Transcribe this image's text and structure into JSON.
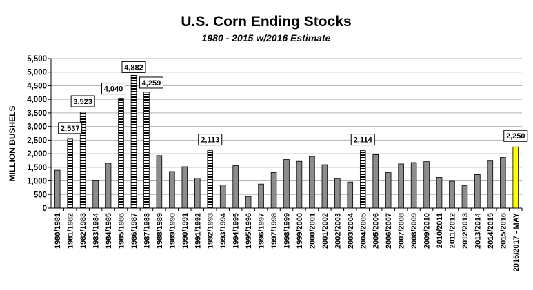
{
  "chart_data": {
    "type": "bar",
    "title": "U.S. Corn Ending Stocks",
    "subtitle": "1980 - 2015 w/2016 Estimate",
    "ylabel": "MILLION BUSHELS",
    "xlabel": "",
    "ylim": [
      0,
      5500
    ],
    "ytick_step": 500,
    "ytick_labels": [
      "0",
      "500",
      "1,000",
      "1,500",
      "2,000",
      "2,500",
      "3,000",
      "3,500",
      "4,000",
      "4,500",
      "5,000",
      "5,500"
    ],
    "grid": true,
    "categories": [
      "1980/1981",
      "1981/1982",
      "1982/1983",
      "1983/1984",
      "1984/1985",
      "1985/1986",
      "1986/1987",
      "1987/1988",
      "1988/1989",
      "1989/1990",
      "1990/1991",
      "1991/1992",
      "1992/1993",
      "1993/1994",
      "1994/1995",
      "1995/1996",
      "1996/1997",
      "1997/1998",
      "1998/1999",
      "1999/2000",
      "2000/2001",
      "2001/2002",
      "2002/2003",
      "2003/2004",
      "2004/2005",
      "2005/2006",
      "2006/2007",
      "2007/2008",
      "2008/2009",
      "2009/2010",
      "2010/2011",
      "2011/2012",
      "2012/2013",
      "2013/2014",
      "2014/2015",
      "2015/2016",
      "2016/2017 - MAY"
    ],
    "values": [
      1392,
      2537,
      3523,
      1006,
      1648,
      4040,
      4882,
      4259,
      1930,
      1344,
      1521,
      1100,
      2113,
      850,
      1558,
      426,
      883,
      1308,
      1787,
      1718,
      1899,
      1596,
      1087,
      958,
      2114,
      1967,
      1304,
      1624,
      1673,
      1708,
      1128,
      989,
      821,
      1232,
      1731,
      1862,
      2250
    ],
    "styles": [
      "solid",
      "striped",
      "striped",
      "solid",
      "solid",
      "striped",
      "striped",
      "striped",
      "solid",
      "solid",
      "solid",
      "solid",
      "striped",
      "solid",
      "solid",
      "solid",
      "solid",
      "solid",
      "solid",
      "solid",
      "solid",
      "solid",
      "solid",
      "solid",
      "striped",
      "solid",
      "solid",
      "solid",
      "solid",
      "solid",
      "solid",
      "solid",
      "solid",
      "solid",
      "solid",
      "solid",
      "highlight"
    ],
    "data_labels": [
      {
        "index": 1,
        "text": "2,537"
      },
      {
        "index": 2,
        "text": "3,523"
      },
      {
        "index": 5,
        "text": "4,040"
      },
      {
        "index": 6,
        "text": "4,882"
      },
      {
        "index": 7,
        "text": "4,259"
      },
      {
        "index": 12,
        "text": "2,113"
      },
      {
        "index": 24,
        "text": "2,114"
      },
      {
        "index": 36,
        "text": "2,250"
      }
    ],
    "colors": {
      "solid_fill": "#8c8c8c",
      "highlight_fill": "#ffff00",
      "stripe": "#000000",
      "grid": "#b4b4b4"
    }
  }
}
